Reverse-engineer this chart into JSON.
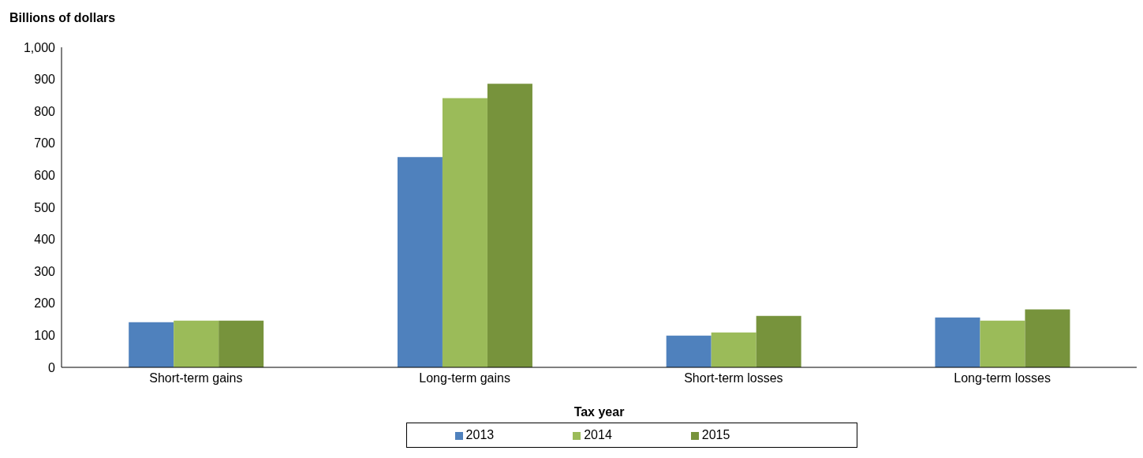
{
  "chart_data": {
    "type": "bar",
    "ylabel": "Billions of dollars",
    "xlabel": "Tax year",
    "categories": [
      "Short-term gains",
      "Long-term gains",
      "Short-term losses",
      "Long-term losses"
    ],
    "series": [
      {
        "name": "2013",
        "color": "#4f81bd",
        "values": [
          141,
          657,
          99,
          156
        ]
      },
      {
        "name": "2014",
        "color": "#9bbb59",
        "values": [
          146,
          841,
          109,
          146
        ]
      },
      {
        "name": "2015",
        "color": "#77933c",
        "values": [
          146,
          886,
          161,
          181
        ]
      }
    ],
    "ylim": [
      0,
      1000
    ],
    "yticks": [
      {
        "value": 0,
        "label": "0"
      },
      {
        "value": 100,
        "label": "100"
      },
      {
        "value": 200,
        "label": "200"
      },
      {
        "value": 300,
        "label": "300"
      },
      {
        "value": 400,
        "label": "400"
      },
      {
        "value": 500,
        "label": "500"
      },
      {
        "value": 600,
        "label": "600"
      },
      {
        "value": 700,
        "label": "700"
      },
      {
        "value": 800,
        "label": "800"
      },
      {
        "value": 900,
        "label": "900"
      },
      {
        "value": 1000,
        "label": "1,000"
      }
    ],
    "grid": false,
    "legend": "bottom"
  }
}
